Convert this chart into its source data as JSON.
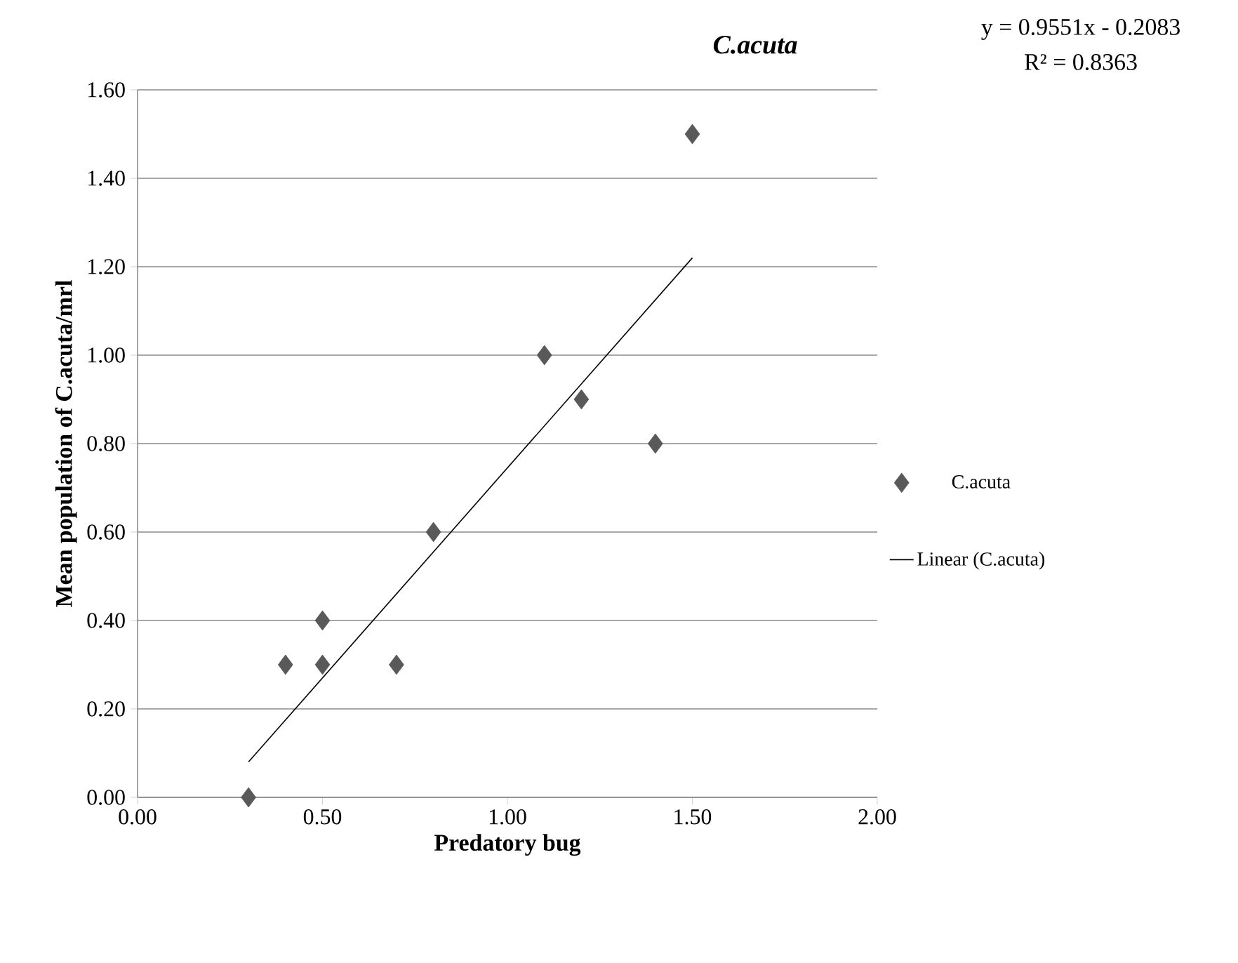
{
  "chart_data": {
    "type": "scatter",
    "title": "*C.acuta*",
    "xlabel": "Predatory bug",
    "ylabel": "Mean population of C.acuta/mrl",
    "xlim": [
      0,
      2
    ],
    "xticks": [
      {
        "value": 0,
        "label": "0.00"
      },
      {
        "value": 0.5,
        "label": "0.50"
      },
      {
        "value": 1,
        "label": "1.00"
      },
      {
        "value": 1.5,
        "label": "1.50"
      },
      {
        "value": 2,
        "label": "2.00"
      }
    ],
    "ylim": [
      0,
      1.6
    ],
    "yticks": [
      {
        "value": 0,
        "label": "0.00"
      },
      {
        "value": 0.2,
        "label": "0.20"
      },
      {
        "value": 0.4,
        "label": "0.40"
      },
      {
        "value": 0.6,
        "label": "0.60"
      },
      {
        "value": 0.8,
        "label": "0.80"
      },
      {
        "value": 1,
        "label": "1.00"
      },
      {
        "value": 1.2,
        "label": "1.20"
      },
      {
        "value": 1.4,
        "label": "1.40"
      },
      {
        "value": 1.6,
        "label": "1.60"
      }
    ],
    "grid": "y",
    "legend": "right",
    "series": [
      {
        "name": "C.acuta",
        "marker": "diamond",
        "color": "#595959",
        "x": [
          0.3,
          0.4,
          0.5,
          0.5,
          0.7,
          0.8,
          1.1,
          1.2,
          1.4,
          1.5
        ],
        "values": [
          0,
          0.3,
          0.3,
          0.4,
          0.3,
          0.6,
          1.0,
          0.9,
          0.8,
          1.5
        ]
      },
      {
        "name": "Linear (C.acuta)",
        "type": "line",
        "marker": "none",
        "line_style": "solid",
        "color": "#000000",
        "x": [
          0.3,
          1.5
        ],
        "values": [
          0.08,
          1.22
        ]
      }
    ],
    "annotations": [
      "y = 0.9551x  - 0.2083",
      "R² = 0.8363"
    ]
  }
}
